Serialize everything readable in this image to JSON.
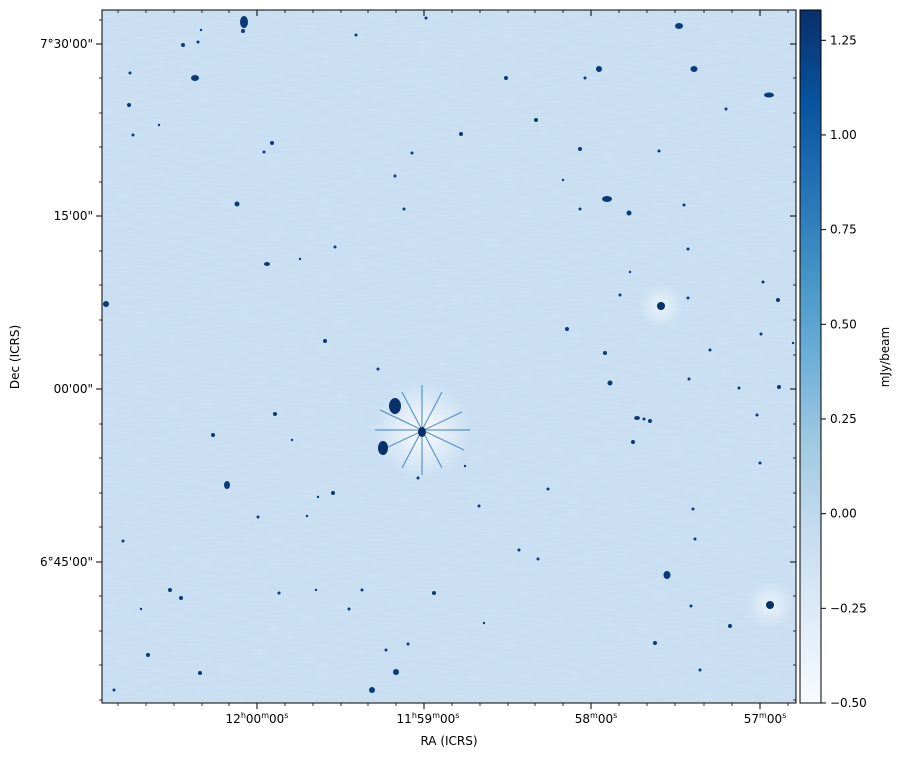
{
  "colors": {
    "map_low": "#f7fbff",
    "map_mid": "#9ecae1",
    "map_high": "#08306b",
    "noise_light": "#e6f0fa",
    "noise_mid": "#a9cbe6",
    "source": "#0b3a78"
  },
  "axes": {
    "xlabel": "RA (ICRS)",
    "ylabel": "Dec (ICRS)",
    "ra_ticks": [
      {
        "h": "12",
        "m": "00",
        "s": "00",
        "show_hm": true
      },
      {
        "h": "11",
        "m": "59",
        "s": "00",
        "show_hm": true
      },
      {
        "h": "",
        "m": "58",
        "s": "00",
        "show_hm": false
      },
      {
        "h": "",
        "m": "57",
        "s": "00",
        "show_hm": false
      }
    ],
    "dec_ticks": [
      "7°30'00\"",
      "15'00\"",
      "00'00\"",
      "6°45'00\""
    ]
  },
  "colorbar": {
    "label": "mJy/beam",
    "min": -0.5,
    "max": 1.33,
    "ticks": [
      "1.25",
      "1.00",
      "0.75",
      "0.50",
      "0.25",
      "0.00",
      "−0.25",
      "−0.50"
    ],
    "tick_values": [
      1.25,
      1.0,
      0.75,
      0.5,
      0.25,
      0.0,
      -0.25,
      -0.5
    ],
    "colormap": "Blues"
  }
}
